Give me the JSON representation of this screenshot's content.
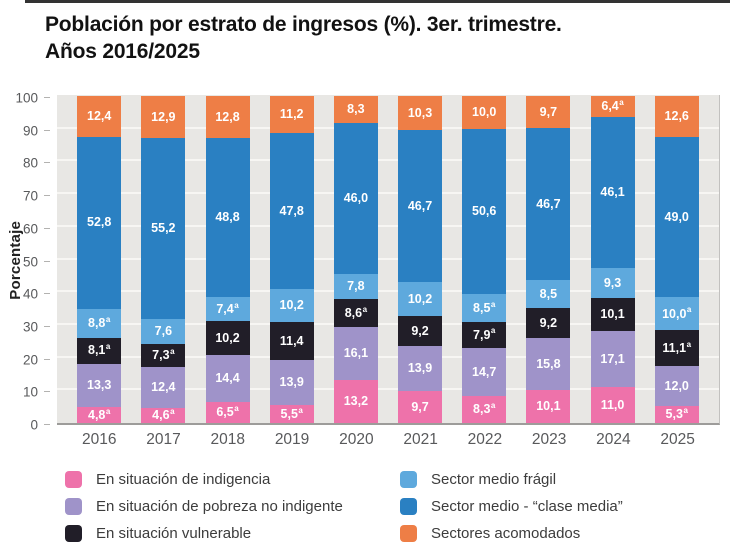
{
  "page": {
    "title_line1": "Población por estrato de ingresos (%). 3er. trimestre.",
    "title_line2": "Años 2016/2025"
  },
  "axes": {
    "y_label": "Porcentaje",
    "y_ticks": [
      0,
      10,
      20,
      30,
      40,
      50,
      60,
      70,
      80,
      90,
      100
    ]
  },
  "colors": {
    "plot_background": "#e8e7e4",
    "gridline": "#f7f6f3",
    "indigencia_pink": "#ee72aa",
    "pobreza_purple": "#9f93c9",
    "vulnerable_black": "#211e28",
    "medio_fragil_light_blue": "#5ea9dd",
    "clase_media_dark_blue": "#2a80c2",
    "acomodados_orange": "#ee7e46"
  },
  "chart_data": {
    "type": "bar",
    "stacked": true,
    "title": "Población por estrato de ingresos (%). 3er. trimestre. Años 2016/2025",
    "xlabel": "",
    "ylabel": "Porcentaje",
    "ylim": [
      0,
      100
    ],
    "grid": "horizontal",
    "legend_position": "bottom",
    "categories": [
      "2016",
      "2017",
      "2018",
      "2019",
      "2020",
      "2021",
      "2022",
      "2023",
      "2024",
      "2025"
    ],
    "series": [
      {
        "name": "En situación de indigencia",
        "color": "#ee72aa",
        "values": [
          4.8,
          4.6,
          6.5,
          5.5,
          13.2,
          9.7,
          8.3,
          10.1,
          11.0,
          5.3
        ],
        "labels": [
          "4,8ᵃ",
          "4,6ᵃ",
          "6,5ᵃ",
          "5,5ᵃ",
          "13,2",
          "9,7",
          "8,3ᵃ",
          "10,1",
          "11,0",
          "5,3ᵃ"
        ]
      },
      {
        "name": "En situación de pobreza no indigente",
        "color": "#9f93c9",
        "values": [
          13.3,
          12.4,
          14.4,
          13.9,
          16.1,
          13.9,
          14.7,
          15.8,
          17.1,
          12.0
        ],
        "labels": [
          "13,3",
          "12,4",
          "14,4",
          "13,9",
          "16,1",
          "13,9",
          "14,7",
          "15,8",
          "17,1",
          "12,0"
        ]
      },
      {
        "name": "En situación vulnerable",
        "color": "#211e28",
        "values": [
          8.1,
          7.3,
          10.2,
          11.4,
          8.6,
          9.2,
          7.9,
          9.2,
          10.1,
          11.1
        ],
        "labels": [
          "8,1ᵃ",
          "7,3ᵃ",
          "10,2",
          "11,4",
          "8,6ᵃ",
          "9,2",
          "7,9ᵃ",
          "9,2",
          "10,1",
          "11,1ᵃ"
        ]
      },
      {
        "name": "Sector medio frágil",
        "color": "#5ea9dd",
        "values": [
          8.8,
          7.6,
          7.4,
          10.2,
          7.8,
          10.2,
          8.5,
          8.5,
          9.3,
          10.0
        ],
        "labels": [
          "8,8ᵃ",
          "7,6",
          "7,4ᵃ",
          "10,2",
          "7,8",
          "10,2",
          "8,5ᵃ",
          "8,5",
          "9,3",
          "10,0ᵃ"
        ]
      },
      {
        "name": "Sector medio - “clase media”",
        "color": "#2a80c2",
        "values": [
          52.8,
          55.2,
          48.8,
          47.8,
          46.0,
          46.7,
          50.6,
          46.7,
          46.1,
          49.0
        ],
        "labels": [
          "52,8",
          "55,2",
          "48,8",
          "47,8",
          "46,0",
          "46,7",
          "50,6",
          "46,7",
          "46,1",
          "49,0"
        ]
      },
      {
        "name": "Sectores acomodados",
        "color": "#ee7e46",
        "values": [
          12.4,
          12.9,
          12.8,
          11.2,
          8.3,
          10.3,
          10.0,
          9.7,
          6.4,
          12.6
        ],
        "labels": [
          "12,4",
          "12,9",
          "12,8",
          "11,2",
          "8,3",
          "10,3",
          "10,0",
          "9,7",
          "6,4ᵃ",
          "12,6"
        ]
      }
    ],
    "legend_columns": {
      "left_series_indexes": [
        0,
        1,
        2
      ],
      "right_series_indexes": [
        3,
        4,
        5
      ]
    }
  }
}
